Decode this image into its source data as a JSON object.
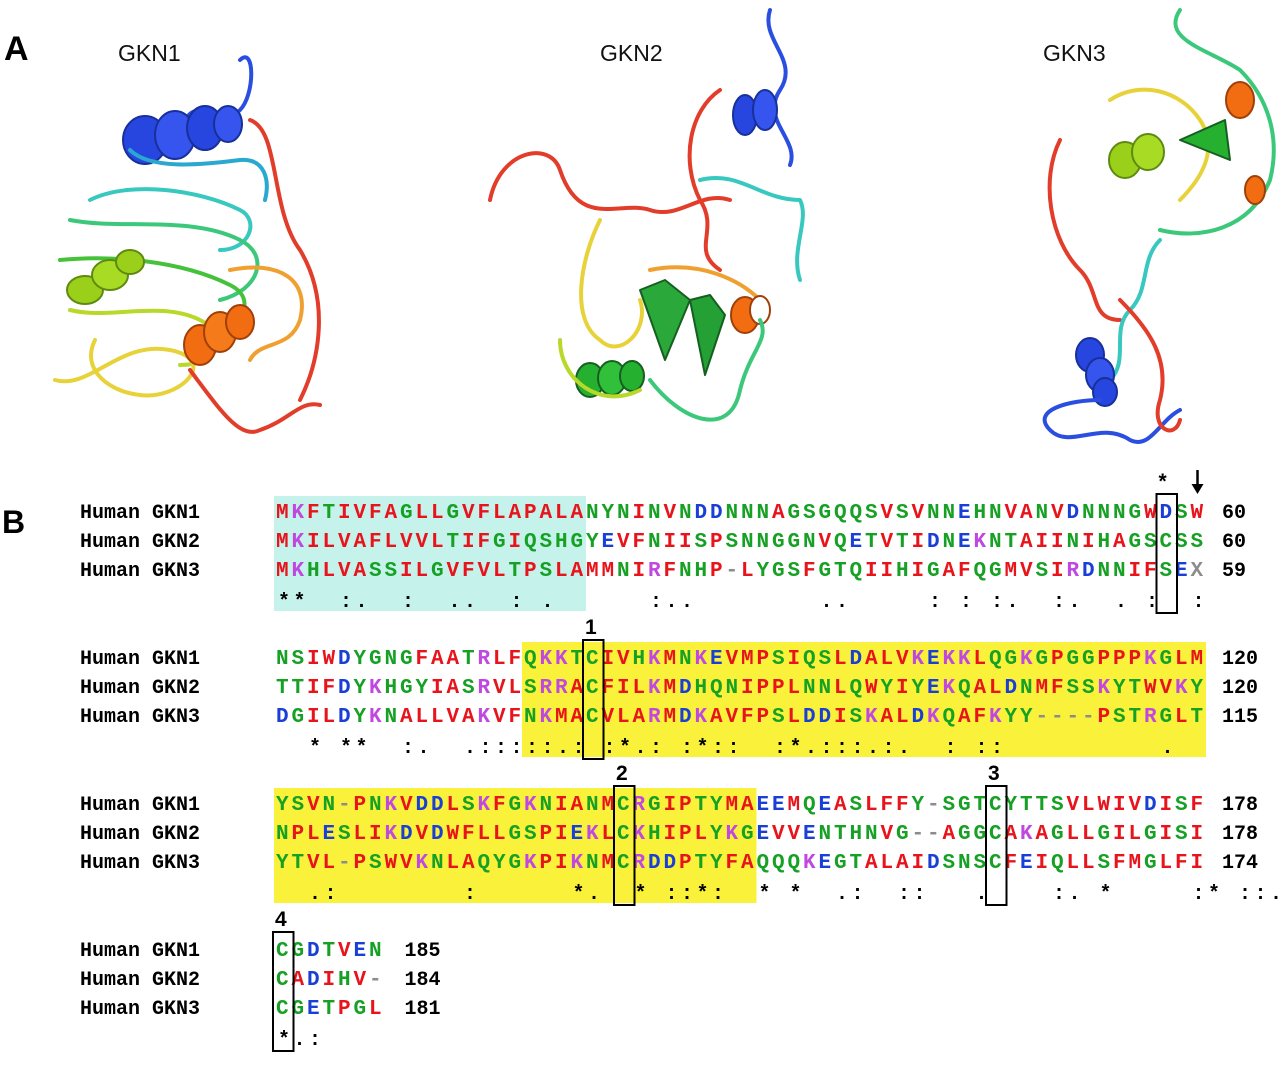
{
  "panel_a": {
    "label": "A",
    "structures": [
      {
        "title": "GKN1"
      },
      {
        "title": "GKN2"
      },
      {
        "title": "GKN3"
      }
    ]
  },
  "panel_b": {
    "label": "B",
    "conservation_marks": [
      "*",
      "1",
      "2",
      "3",
      "4"
    ],
    "blocks": [
      {
        "rows": [
          {
            "name": "Human GKN1",
            "seq": "MKFTIVFAGLLGVFLAPALANYNINVNDDNNNAGSGQQSVSVNNEHNVANVDNNNGWDSW",
            "end": "60"
          },
          {
            "name": "Human GKN2",
            "seq": "MKILVAFLVVLTIFGIQSHGYEVFNIISPSNNGGNVQETVTIDNEKNTAIINIHAGSCSS",
            "end": "60"
          },
          {
            "name": "Human GKN3",
            "seq": "MKHLVASSILGVFVLTPSLAMMNIRFNHP-LYGSFGTQIIHIGAFQGMVSIRDNNIFSEX",
            "end": "59"
          }
        ],
        "consensus": "**  :.  :  ..  : .      :..        ..     : : :.  :.  . :  :     ."
      },
      {
        "rows": [
          {
            "name": "Human GKN1",
            "seq": "NSIWDYGNGFAATRLFQKKTCIVHKMNKEVMPSIQSLDALVKEKKLQGKGPGGPPPKGLM",
            "end": "120"
          },
          {
            "name": "Human GKN2",
            "seq": "TTIFDYKHGYIASRVLSRRACFILKMDHQNIPPLNNLQWYIYEKQALDNMFSSKYTWVKY",
            "end": "120"
          },
          {
            "name": "Human GKN3",
            "seq": "DGILDYKNALLVAKVFNKMACVLARMDKAVFPSLDDISKALDKQAFKYY----PSTRGLT",
            "end": "115"
          }
        ],
        "consensus": "  * **  :.  .:::::.: :*.: :*::  :*.:::.:.  : ::          .  "
      },
      {
        "rows": [
          {
            "name": "Human GKN1",
            "seq": "YSVN-PNKVDDLSKFGKNIANMCRGIPTYMAEEMQEASLFFY-SGTCYTTSVLWIVDISF",
            "end": "178"
          },
          {
            "name": "Human GKN2",
            "seq": "NPLESLIKDVDWFLLGSPIEKLCKHIPLYKGEVVENTHNVG--AGGCAKAGLLGILGISI",
            "end": "178"
          },
          {
            "name": "Human GKN3",
            "seq": "YTVL-PSWVKNLAQYGKPIKNMCRDDPTYFAQQQKEGTALAIDSNSCFEIQLLSFMGLFI",
            "end": "174"
          }
        ],
        "consensus": "  .:        :      *.  * ::*:  * *  .:  ::   .    :. *     :* ::.: :"
      },
      {
        "rows": [
          {
            "name": "Human GKN1",
            "seq": "CGDTVEN",
            "end": "185"
          },
          {
            "name": "Human GKN2",
            "seq": "CADIHV-",
            "end": "184"
          },
          {
            "name": "Human GKN3",
            "seq": "CGETPGL",
            "end": "181"
          }
        ],
        "consensus": "*.:"
      }
    ]
  },
  "colors": {
    "red": "#e8141c",
    "green": "#16a024",
    "blue": "#1a3fd6",
    "magenta": "#c048e0",
    "gray": "#8c8c8c",
    "cyan_highlight": "#c6f2ec",
    "yellow_highlight": "#faf23a"
  }
}
